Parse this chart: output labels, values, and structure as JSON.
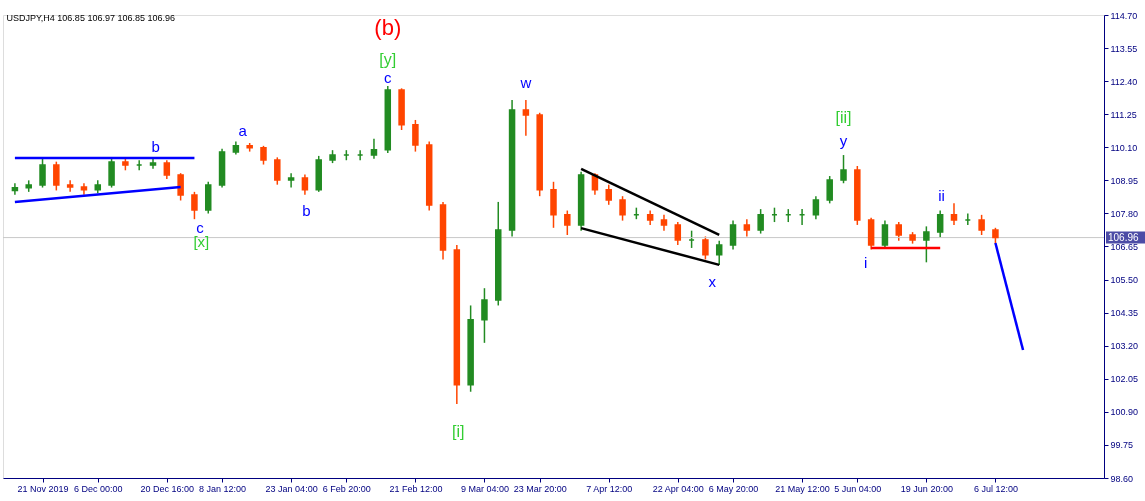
{
  "chart_data": {
    "type": "candlestick",
    "title": "USDJPY,H4  106.85 106.97 106.85 106.96",
    "categories": [
      null,
      null,
      "21 Nov 2019",
      null,
      null,
      null,
      "6 Dec 00:00",
      null,
      null,
      null,
      null,
      "20 Dec 16:00",
      null,
      null,
      null,
      "8 Jan 12:00",
      null,
      null,
      null,
      null,
      "23 Jan 04:00",
      null,
      null,
      null,
      "6 Feb 20:00",
      null,
      null,
      null,
      null,
      "21 Feb 12:00",
      null,
      null,
      null,
      null,
      "9 Mar 04:00",
      null,
      null,
      null,
      "23 Mar 20:00",
      null,
      null,
      null,
      null,
      "7 Apr 12:00",
      null,
      null,
      null,
      null,
      "22 Apr 04:00",
      null,
      null,
      null,
      "6 May 20:00",
      null,
      null,
      null,
      null,
      "21 May 12:00",
      null,
      null,
      null,
      "5 Jun 04:00",
      null,
      null,
      null,
      null,
      "19 Jun 20:00",
      null,
      null,
      null,
      null,
      "6 Jul 12:00",
      null,
      null,
      null,
      null,
      null,
      null
    ],
    "colors": [
      "#228b22",
      "#228b22",
      "#228b22",
      "#ff4500",
      "#ff4500",
      "#ff4500",
      "#228b22",
      "#228b22",
      "#ff4500",
      "#228b22",
      "#228b22",
      "#ff4500",
      "#ff4500",
      "#ff4500",
      "#228b22",
      "#228b22",
      "#228b22",
      "#ff4500",
      "#ff4500",
      "#ff4500",
      "#228b22",
      "#ff4500",
      "#228b22",
      "#228b22",
      "#228b22",
      "#228b22",
      "#228b22",
      "#228b22",
      "#ff4500",
      "#ff4500",
      "#ff4500",
      "#ff4500",
      "#ff4500",
      "#228b22",
      "#228b22",
      "#228b22",
      "#228b22",
      "#ff4500",
      "#ff4500",
      "#ff4500",
      "#ff4500",
      "#228b22",
      "#ff4500",
      "#ff4500",
      "#ff4500",
      "#228b22",
      "#ff4500",
      "#ff4500",
      "#ff4500",
      "#228b22",
      "#ff4500",
      "#228b22",
      "#228b22",
      "#ff4500",
      "#228b22",
      "#228b22",
      "#228b22",
      "#228b22",
      "#228b22",
      "#228b22",
      "#228b22",
      "#ff4500",
      "#ff4500",
      "#228b22",
      "#ff4500",
      "#ff4500",
      "#228b22",
      "#228b22",
      "#ff4500",
      "#228b22",
      "#ff4500",
      "#ff4500",
      null,
      null,
      null,
      null,
      null,
      null
    ],
    "ohlc": [
      [
        108.6,
        108.85,
        108.45,
        108.69
      ],
      [
        108.69,
        108.95,
        108.55,
        108.79
      ],
      [
        108.79,
        109.7,
        108.7,
        109.48
      ],
      [
        109.48,
        109.6,
        108.6,
        108.79
      ],
      [
        108.79,
        108.95,
        108.55,
        108.72
      ],
      [
        108.72,
        108.85,
        108.45,
        108.62
      ],
      [
        108.62,
        108.95,
        108.5,
        108.79
      ],
      [
        108.79,
        109.75,
        108.7,
        109.59
      ],
      [
        109.59,
        109.7,
        109.3,
        109.48
      ],
      [
        109.48,
        109.65,
        109.3,
        109.48
      ],
      [
        109.48,
        109.7,
        109.35,
        109.55
      ],
      [
        109.55,
        109.65,
        109.0,
        109.14
      ],
      [
        109.14,
        109.2,
        108.25,
        108.44
      ],
      [
        108.44,
        108.55,
        107.6,
        107.92
      ],
      [
        107.92,
        108.9,
        107.8,
        108.79
      ],
      [
        108.79,
        110.05,
        108.7,
        109.94
      ],
      [
        109.94,
        110.3,
        109.85,
        110.15
      ],
      [
        110.15,
        110.25,
        109.95,
        110.08
      ],
      [
        110.08,
        110.15,
        109.5,
        109.66
      ],
      [
        109.66,
        109.75,
        108.8,
        108.96
      ],
      [
        108.96,
        109.2,
        108.7,
        109.03
      ],
      [
        109.03,
        109.15,
        108.45,
        108.62
      ],
      [
        108.62,
        109.8,
        108.55,
        109.66
      ],
      [
        109.66,
        110.0,
        109.55,
        109.83
      ],
      [
        109.83,
        110.0,
        109.65,
        109.83
      ],
      [
        109.83,
        110.0,
        109.65,
        109.83
      ],
      [
        109.83,
        110.4,
        109.7,
        110.01
      ],
      [
        110.01,
        112.23,
        109.9,
        112.09
      ],
      [
        112.09,
        112.15,
        110.7,
        110.88
      ],
      [
        110.88,
        111.05,
        109.95,
        110.18
      ],
      [
        110.18,
        110.3,
        107.9,
        108.09
      ],
      [
        108.09,
        108.2,
        106.2,
        106.53
      ],
      [
        106.53,
        106.7,
        101.17,
        101.84
      ],
      [
        101.84,
        104.6,
        101.6,
        104.1
      ],
      [
        104.1,
        105.2,
        103.3,
        104.79
      ],
      [
        104.79,
        108.2,
        104.6,
        107.22
      ],
      [
        107.22,
        111.74,
        107.0,
        111.4
      ],
      [
        111.4,
        111.74,
        110.5,
        111.22
      ],
      [
        111.22,
        111.3,
        108.4,
        108.62
      ],
      [
        108.62,
        108.9,
        107.3,
        107.75
      ],
      [
        107.75,
        107.9,
        107.05,
        107.4
      ],
      [
        107.4,
        109.25,
        107.2,
        109.14
      ],
      [
        109.14,
        109.2,
        108.45,
        108.62
      ],
      [
        108.62,
        108.8,
        108.1,
        108.27
      ],
      [
        108.27,
        108.4,
        107.55,
        107.75
      ],
      [
        107.75,
        108.0,
        107.6,
        107.75
      ],
      [
        107.75,
        107.9,
        107.4,
        107.57
      ],
      [
        107.57,
        107.75,
        107.2,
        107.4
      ],
      [
        107.4,
        107.5,
        106.7,
        106.88
      ],
      [
        106.88,
        107.2,
        106.6,
        106.88
      ],
      [
        106.88,
        107.0,
        106.2,
        106.36
      ],
      [
        106.36,
        106.85,
        106.01,
        106.7
      ],
      [
        106.7,
        107.55,
        106.55,
        107.4
      ],
      [
        107.4,
        107.6,
        107.0,
        107.22
      ],
      [
        107.22,
        107.95,
        107.1,
        107.75
      ],
      [
        107.75,
        108.0,
        107.5,
        107.75
      ],
      [
        107.75,
        107.95,
        107.5,
        107.75
      ],
      [
        107.75,
        107.95,
        107.4,
        107.75
      ],
      [
        107.75,
        108.4,
        107.6,
        108.27
      ],
      [
        108.27,
        109.1,
        108.15,
        108.96
      ],
      [
        108.96,
        109.83,
        108.85,
        109.31
      ],
      [
        109.31,
        109.45,
        107.4,
        107.57
      ],
      [
        107.57,
        107.65,
        106.55,
        106.7
      ],
      [
        106.7,
        107.55,
        106.6,
        107.4
      ],
      [
        107.4,
        107.5,
        106.85,
        107.05
      ],
      [
        107.05,
        107.15,
        106.75,
        106.88
      ],
      [
        106.88,
        107.35,
        106.1,
        107.15
      ],
      [
        107.15,
        107.9,
        106.95,
        107.75
      ],
      [
        107.75,
        108.15,
        107.4,
        107.57
      ],
      [
        107.57,
        107.8,
        107.4,
        107.57
      ],
      [
        107.57,
        107.75,
        107.05,
        107.22
      ],
      [
        107.22,
        107.3,
        106.75,
        106.96
      ],
      null,
      null,
      null,
      null,
      null,
      null
    ],
    "series": [
      {
        "type": "line",
        "color": "#0000ff",
        "values": [
          109.73,
          null,
          null,
          null,
          null,
          null,
          null,
          null,
          null,
          null,
          null,
          null,
          null,
          109.73,
          null,
          null,
          null,
          null,
          null,
          null,
          null,
          null,
          null,
          null,
          null,
          null,
          null,
          null,
          null,
          null,
          null,
          null,
          null,
          null,
          null,
          null,
          null,
          null,
          null,
          null,
          null,
          null,
          null,
          null,
          null,
          null,
          null,
          null,
          null,
          null,
          null,
          null,
          null,
          null,
          null,
          null,
          null,
          null,
          null,
          null,
          null,
          null,
          null,
          null,
          null,
          null,
          null,
          null,
          null,
          null,
          null,
          null,
          null,
          null,
          null,
          null,
          null,
          null
        ]
      },
      {
        "type": "line",
        "color": "#0000ff",
        "values": [
          108.2,
          null,
          null,
          null,
          null,
          null,
          null,
          null,
          null,
          null,
          null,
          null,
          108.72,
          null,
          null,
          null,
          null,
          null,
          null,
          null,
          null,
          null,
          null,
          null,
          null,
          null,
          null,
          null,
          null,
          null,
          null,
          null,
          null,
          null,
          null,
          null,
          null,
          null,
          null,
          null,
          null,
          null,
          null,
          null,
          null,
          null,
          null,
          null,
          null,
          null,
          null,
          null,
          null,
          null,
          null,
          null,
          null,
          null,
          null,
          null,
          null,
          null,
          null,
          null,
          null,
          null,
          null,
          null,
          null,
          null,
          null,
          null,
          null,
          null,
          null,
          null,
          null,
          null
        ]
      },
      {
        "type": "line",
        "color": "#000000",
        "values": [
          null,
          null,
          null,
          null,
          null,
          null,
          null,
          null,
          null,
          null,
          null,
          null,
          null,
          null,
          null,
          null,
          null,
          null,
          null,
          null,
          null,
          null,
          null,
          null,
          null,
          null,
          null,
          null,
          null,
          null,
          null,
          null,
          null,
          null,
          null,
          null,
          null,
          null,
          null,
          null,
          null,
          109.35,
          null,
          null,
          null,
          null,
          null,
          null,
          null,
          null,
          null,
          107.05,
          null,
          null,
          null,
          null,
          null,
          null,
          null,
          null,
          null,
          null,
          null,
          null,
          null,
          null,
          null,
          null,
          null,
          null,
          null,
          null,
          null,
          null,
          null,
          null,
          null,
          null
        ]
      },
      {
        "type": "line",
        "color": "#000000",
        "values": [
          null,
          null,
          null,
          null,
          null,
          null,
          null,
          null,
          null,
          null,
          null,
          null,
          null,
          null,
          null,
          null,
          null,
          null,
          null,
          null,
          null,
          null,
          null,
          null,
          null,
          null,
          null,
          null,
          null,
          null,
          null,
          null,
          null,
          null,
          null,
          null,
          null,
          null,
          null,
          null,
          null,
          107.29,
          null,
          null,
          null,
          null,
          null,
          null,
          null,
          null,
          null,
          106.01,
          null,
          null,
          null,
          null,
          null,
          null,
          null,
          null,
          null,
          null,
          null,
          null,
          null,
          null,
          null,
          null,
          null,
          null,
          null,
          null,
          null,
          null,
          null,
          null,
          null,
          null
        ]
      },
      {
        "type": "line",
        "color": "#ff0000",
        "values": [
          null,
          null,
          null,
          null,
          null,
          null,
          null,
          null,
          null,
          null,
          null,
          null,
          null,
          null,
          null,
          null,
          null,
          null,
          null,
          null,
          null,
          null,
          null,
          null,
          null,
          null,
          null,
          null,
          null,
          null,
          null,
          null,
          null,
          null,
          null,
          null,
          null,
          null,
          null,
          null,
          null,
          null,
          null,
          null,
          null,
          null,
          null,
          null,
          null,
          null,
          null,
          null,
          null,
          null,
          null,
          null,
          null,
          null,
          null,
          null,
          null,
          null,
          106.6,
          null,
          null,
          null,
          null,
          106.6,
          null,
          null,
          null,
          null,
          null,
          null,
          null,
          null,
          null,
          null
        ]
      },
      {
        "type": "line",
        "color": "#0000ff",
        "values": [
          null,
          null,
          null,
          null,
          null,
          null,
          null,
          null,
          null,
          null,
          null,
          null,
          null,
          null,
          null,
          null,
          null,
          null,
          null,
          null,
          null,
          null,
          null,
          null,
          null,
          null,
          null,
          null,
          null,
          null,
          null,
          null,
          null,
          null,
          null,
          null,
          null,
          null,
          null,
          null,
          null,
          null,
          null,
          null,
          null,
          null,
          null,
          null,
          null,
          null,
          null,
          null,
          null,
          null,
          null,
          null,
          null,
          null,
          null,
          null,
          null,
          null,
          null,
          null,
          null,
          null,
          null,
          null,
          null,
          null,
          null,
          106.77,
          null,
          103.05,
          null,
          null,
          null,
          null
        ]
      }
    ],
    "annotations": [
      "b",
      "c",
      "[x]",
      "a",
      "b",
      "(b)",
      "[y]",
      "c",
      "[i]",
      "w",
      "x",
      "[ii]",
      "y",
      "i",
      "ii"
    ],
    "ref_lines": [
      {
        "axis": "y",
        "value": 106.96,
        "label": "106.96",
        "color": "#c8c8c8"
      }
    ],
    "ylim": [
      98.6,
      114.7
    ],
    "yticks": [
      {
        "value": 98.6,
        "label": "98.60"
      },
      99.75,
      {
        "value": 100.9,
        "label": "100.90"
      },
      102.05,
      {
        "value": 103.2,
        "label": "103.20"
      },
      104.35,
      {
        "value": 105.5,
        "label": "105.50"
      },
      106.65,
      {
        "value": 107.8,
        "label": "107.80"
      },
      108.95,
      {
        "value": 110.1,
        "label": "110.10"
      },
      111.25,
      {
        "value": 112.4,
        "label": "112.40"
      },
      113.55,
      {
        "value": 114.7,
        "label": "114.70"
      }
    ],
    "grid": false
  }
}
